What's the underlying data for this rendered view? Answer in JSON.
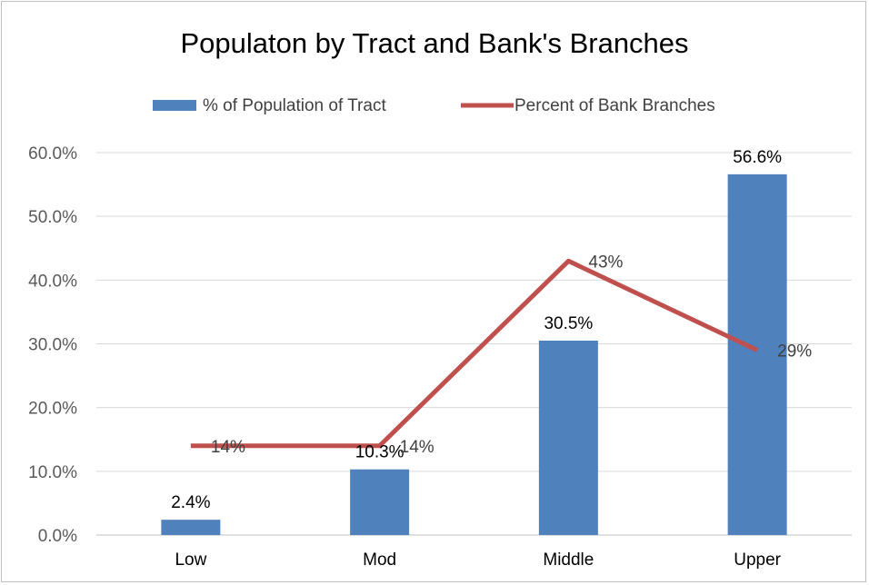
{
  "chart_data": {
    "type": "bar",
    "title": "Populaton by Tract and Bank's Branches",
    "categories": [
      "Low",
      "Mod",
      "Middle",
      "Upper"
    ],
    "ylim": [
      0,
      60
    ],
    "ytick_labels": [
      "0.0%",
      "10.0%",
      "20.0%",
      "30.0%",
      "40.0%",
      "50.0%",
      "60.0%"
    ],
    "grid": true,
    "legend_position": "top",
    "series": [
      {
        "name": "% of Population of Tract",
        "type": "bar",
        "color": "#4f81bd",
        "values": [
          2.4,
          10.3,
          30.5,
          56.6
        ],
        "labels": [
          "2.4%",
          "10.3%",
          "30.5%",
          "56.6%"
        ]
      },
      {
        "name": "Percent of Bank Branches",
        "type": "line",
        "color": "#c0504d",
        "values": [
          14,
          14,
          43,
          29
        ],
        "labels": [
          "14%",
          "14%",
          "43%",
          "29%"
        ]
      }
    ]
  }
}
